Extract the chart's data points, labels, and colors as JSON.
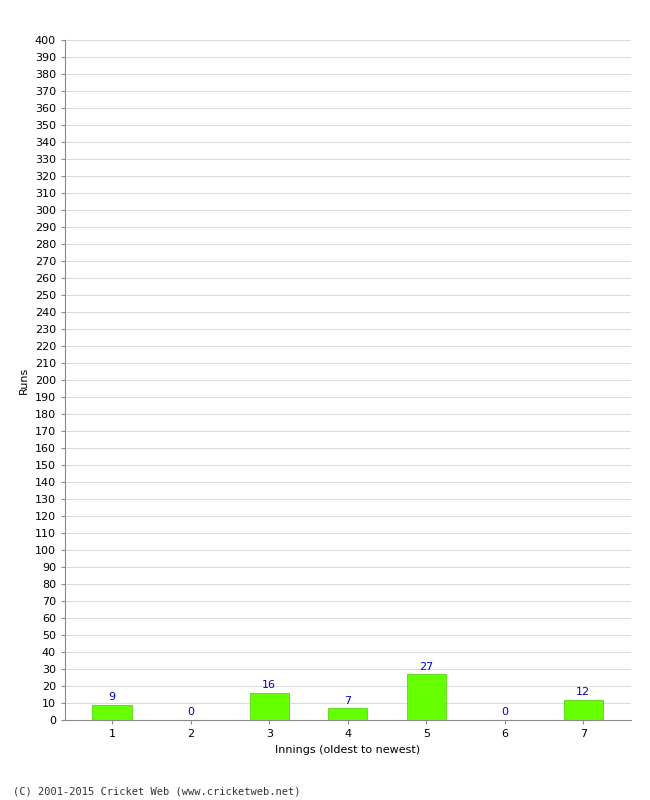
{
  "categories": [
    "1",
    "2",
    "3",
    "4",
    "5",
    "6",
    "7"
  ],
  "values": [
    9,
    0,
    16,
    7,
    27,
    0,
    12
  ],
  "bar_color": "#66ff00",
  "bar_edge_color": "#44cc00",
  "label_color": "#0000cc",
  "ylabel": "Runs",
  "xlabel": "Innings (oldest to newest)",
  "ylim": [
    0,
    400
  ],
  "background_color": "#ffffff",
  "grid_color": "#cccccc",
  "footer_text": "(C) 2001-2015 Cricket Web (www.cricketweb.net)",
  "label_fontsize": 8,
  "axis_fontsize": 8,
  "ylabel_fontsize": 8,
  "xlabel_fontsize": 8,
  "footer_fontsize": 7.5,
  "tick_label_color": "#000000"
}
